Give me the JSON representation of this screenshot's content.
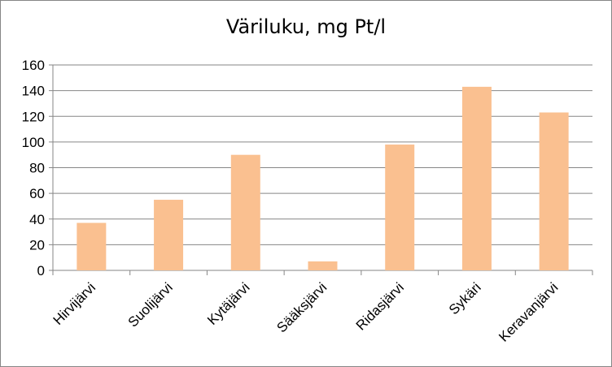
{
  "chart_data": {
    "type": "bar",
    "title": "Väriluku, mg Pt/l",
    "categories": [
      "Hirvijärvi",
      "Suolijärvi",
      "Kytäjärvi",
      "Sääksjärvi",
      "Ridasjärvi",
      "Sykäri",
      "Keravanjärvi"
    ],
    "values": [
      37,
      55,
      90,
      7,
      98,
      143,
      123
    ],
    "ylim": [
      0,
      160
    ],
    "yticks": [
      0,
      20,
      40,
      60,
      80,
      100,
      120,
      140,
      160
    ],
    "grid": true,
    "legend": "none",
    "bar_color": "#FAC090",
    "grid_color": "#868686"
  }
}
